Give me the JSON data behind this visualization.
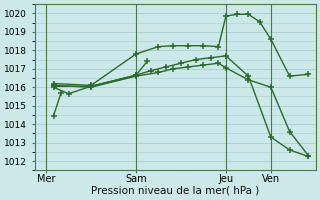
{
  "title": "Pression niveau de la mer( hPa )",
  "bg_color": "#cce8e8",
  "grid_color": "#aacfcf",
  "line_color": "#2d6a2d",
  "vline_color": "#4a7a4a",
  "ylim": [
    1011.5,
    1020.5
  ],
  "yticks": [
    1012,
    1013,
    1014,
    1015,
    1016,
    1017,
    1018,
    1019,
    1020
  ],
  "xtick_labels": [
    "Mer",
    "Sam",
    "Jeu",
    "Ven"
  ],
  "xtick_positions": [
    0,
    24,
    48,
    60
  ],
  "vline_positions": [
    0,
    24,
    48,
    60
  ],
  "xlim": [
    -3,
    72
  ],
  "series": [
    {
      "x": [
        2,
        12,
        24,
        30,
        34,
        38,
        42,
        46,
        48,
        51,
        54,
        57,
        60,
        65,
        70
      ],
      "y": [
        1016.2,
        1016.1,
        1017.8,
        1018.2,
        1018.25,
        1018.25,
        1018.25,
        1018.2,
        1019.85,
        1019.95,
        1019.95,
        1019.55,
        1018.6,
        1016.6,
        1016.7
      ]
    },
    {
      "x": [
        2,
        12,
        24,
        30,
        34,
        38,
        42,
        46,
        48,
        54,
        60,
        65,
        70
      ],
      "y": [
        1016.1,
        1016.0,
        1016.6,
        1016.8,
        1017.0,
        1017.1,
        1017.2,
        1017.3,
        1017.05,
        1016.4,
        1016.0,
        1013.6,
        1012.3
      ]
    },
    {
      "x": [
        2,
        6,
        12,
        24,
        28,
        32,
        36,
        40,
        44,
        48,
        54,
        60,
        65,
        70
      ],
      "y": [
        1016.0,
        1015.65,
        1016.05,
        1016.65,
        1016.9,
        1017.1,
        1017.3,
        1017.5,
        1017.6,
        1017.7,
        1016.6,
        1013.3,
        1012.6,
        1012.25
      ]
    },
    {
      "x": [
        2,
        12,
        24,
        27
      ],
      "y": [
        1016.05,
        1016.05,
        1016.65,
        1017.4
      ]
    },
    {
      "x": [
        2,
        4
      ],
      "y": [
        1014.45,
        1015.7
      ]
    }
  ]
}
